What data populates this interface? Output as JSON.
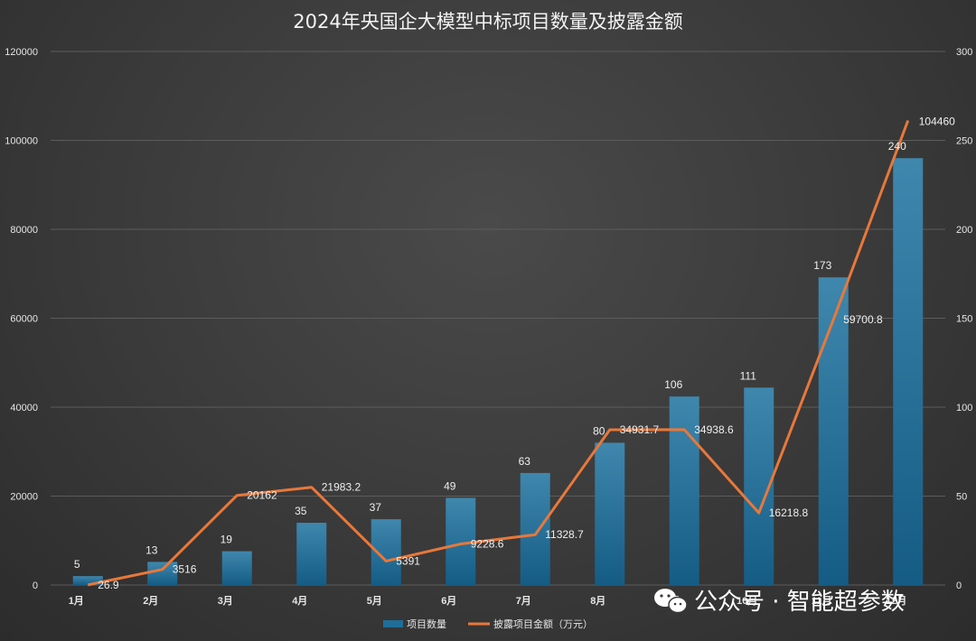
{
  "chart_data": {
    "type": "bar",
    "title": "2024年央国企大模型中标项目数量及披露金额",
    "categories": [
      "1月",
      "2月",
      "3月",
      "4月",
      "5月",
      "6月",
      "7月",
      "8月",
      "9月",
      "10月",
      "11月",
      "12月"
    ],
    "series": [
      {
        "name": "项目数量",
        "chart_type": "bar",
        "axis": "right",
        "color": "#1f6e99",
        "values": [
          5,
          13,
          19,
          35,
          37,
          49,
          63,
          80,
          106,
          111,
          173,
          240
        ],
        "labels": [
          "5",
          "13",
          "19",
          "35",
          "37",
          "49",
          "63",
          "80",
          "106",
          "111",
          "173",
          "240"
        ]
      },
      {
        "name": "披露项目金额（万元）",
        "chart_type": "line",
        "axis": "left",
        "color": "#e8783a",
        "values": [
          26.9,
          3516,
          20162,
          21983.2,
          5391,
          9228.6,
          11328.7,
          34931.7,
          34938.6,
          16218.8,
          59700.8,
          104460
        ],
        "labels": [
          "26.9",
          "3516",
          "20162",
          "21983.2",
          "5391",
          "9228.6",
          "11328.7",
          "34931.7",
          "34938.6",
          "16218.8",
          "59700.8",
          "104460"
        ]
      }
    ],
    "y_left": {
      "range": [
        0,
        120000
      ],
      "ticks": [
        "0",
        "20000",
        "40000",
        "60000",
        "80000",
        "100000",
        "120000"
      ]
    },
    "y_right": {
      "range": [
        0,
        300
      ],
      "ticks": [
        "0",
        "50",
        "100",
        "150",
        "200",
        "250",
        "300"
      ]
    },
    "grid": true,
    "legend_position": "bottom"
  },
  "watermark": {
    "text": "公众号 · 智能超参数",
    "icon": "wechat-icon"
  }
}
